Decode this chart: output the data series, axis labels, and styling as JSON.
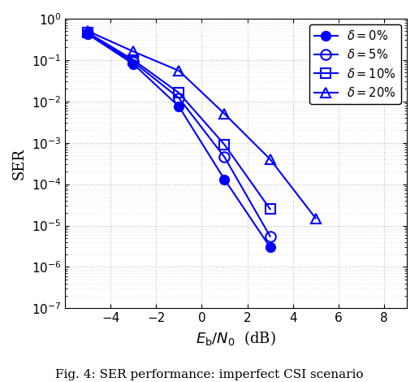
{
  "series": [
    {
      "label": "$\\delta = 0\\%$",
      "x": [
        -5,
        -3,
        -1,
        1,
        3
      ],
      "y": [
        0.42,
        0.08,
        0.0075,
        0.00013,
        3e-06
      ],
      "marker": "o",
      "fillstyle": "full",
      "color": "blue",
      "markersize": 8
    },
    {
      "label": "$\\delta = 5\\%$",
      "x": [
        -5,
        -3,
        -1,
        1,
        3
      ],
      "y": [
        0.44,
        0.09,
        0.012,
        0.00045,
        5.5e-06
      ],
      "marker": "o",
      "fillstyle": "none",
      "color": "blue",
      "markersize": 9
    },
    {
      "label": "$\\delta = 10\\%$",
      "x": [
        -5,
        -3,
        -1,
        1,
        3
      ],
      "y": [
        0.46,
        0.1,
        0.016,
        0.0009,
        2.5e-05
      ],
      "marker": "s",
      "fillstyle": "none",
      "color": "blue",
      "markersize": 8
    },
    {
      "label": "$\\delta = 20\\%$",
      "x": [
        -5,
        -3,
        -1,
        1,
        3,
        5
      ],
      "y": [
        0.5,
        0.16,
        0.055,
        0.005,
        0.0004,
        1.5e-05
      ],
      "marker": "^",
      "fillstyle": "none",
      "color": "blue",
      "markersize": 9
    }
  ],
  "xlabel": "$E_{\\mathrm{b}}/N_0$  (dB)",
  "ylabel": "SER",
  "xlim": [
    -6,
    9
  ],
  "ylim_log": [
    -7,
    0
  ],
  "xticks": [
    -4,
    -2,
    0,
    2,
    4,
    6,
    8
  ],
  "caption": "Fig. 4: SER performance: imperfect CSI scenario",
  "grid_major_color": "#bbbbbb",
  "grid_minor_color": "#dddddd",
  "line_color": "blue",
  "bg_color": "#ffffff"
}
